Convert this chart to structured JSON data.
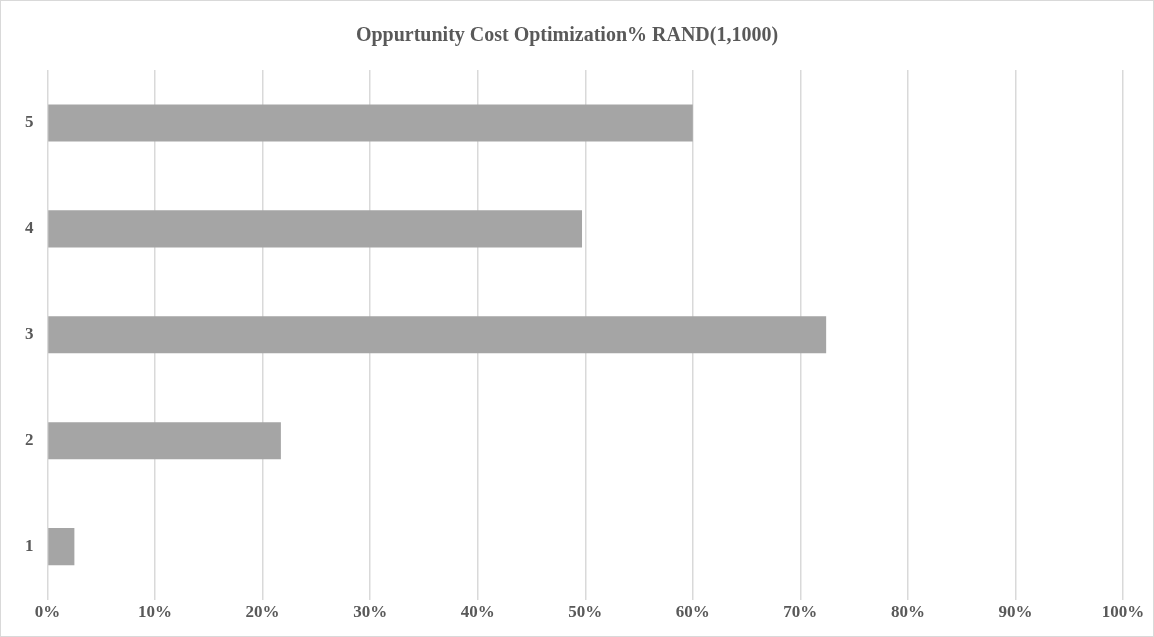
{
  "chart_data": {
    "type": "bar",
    "orientation": "horizontal",
    "title": "Oppurtunity Cost Optimization% RAND(1,1000)",
    "categories": [
      "5",
      "4",
      "3",
      "2",
      "1"
    ],
    "values": [
      60,
      49.7,
      72.4,
      21.7,
      2.5
    ],
    "color": "#a5a5a5",
    "xlim": [
      0,
      100
    ],
    "xticks": [
      {
        "value": 0,
        "label": "0%"
      },
      {
        "value": 10,
        "label": "10%"
      },
      {
        "value": 20,
        "label": "20%"
      },
      {
        "value": 30,
        "label": "30%"
      },
      {
        "value": 40,
        "label": "40%"
      },
      {
        "value": 50,
        "label": "50%"
      },
      {
        "value": 60,
        "label": "60%"
      },
      {
        "value": 70,
        "label": "70%"
      },
      {
        "value": 80,
        "label": "80%"
      },
      {
        "value": 90,
        "label": "90%"
      },
      {
        "value": 100,
        "label": "100%"
      }
    ],
    "grid": "x",
    "legend": false
  }
}
